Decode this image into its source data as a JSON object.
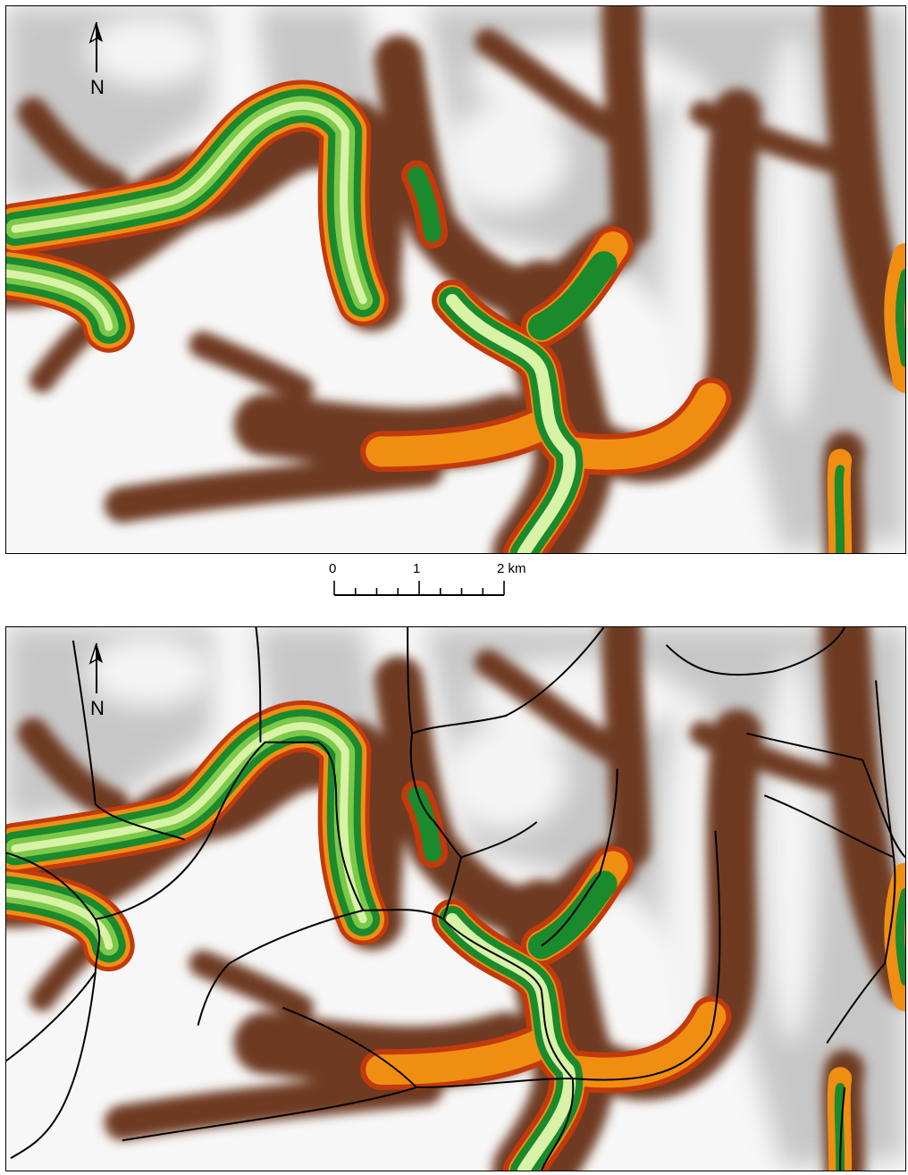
{
  "maps": [
    {
      "id": "top",
      "north_label": "N",
      "streams_shown": false
    },
    {
      "id": "bottom",
      "north_label": "N",
      "streams_shown": true
    }
  ],
  "scale_bar": {
    "labels": [
      "0",
      "1",
      "2 km"
    ],
    "unit": "km",
    "max": 2,
    "minor_divisions": 8
  },
  "colors": {
    "ridge": "#ffffff",
    "upland": "#b5b5b5",
    "slope": "#6e3b20",
    "valley_edge": "#c23a0c",
    "orange": "#f08e12",
    "green": "#1a8a2c",
    "light_green": "#d8f2a6",
    "streams": "#000000"
  },
  "icons": {
    "north_arrow": "north-arrow-icon"
  }
}
